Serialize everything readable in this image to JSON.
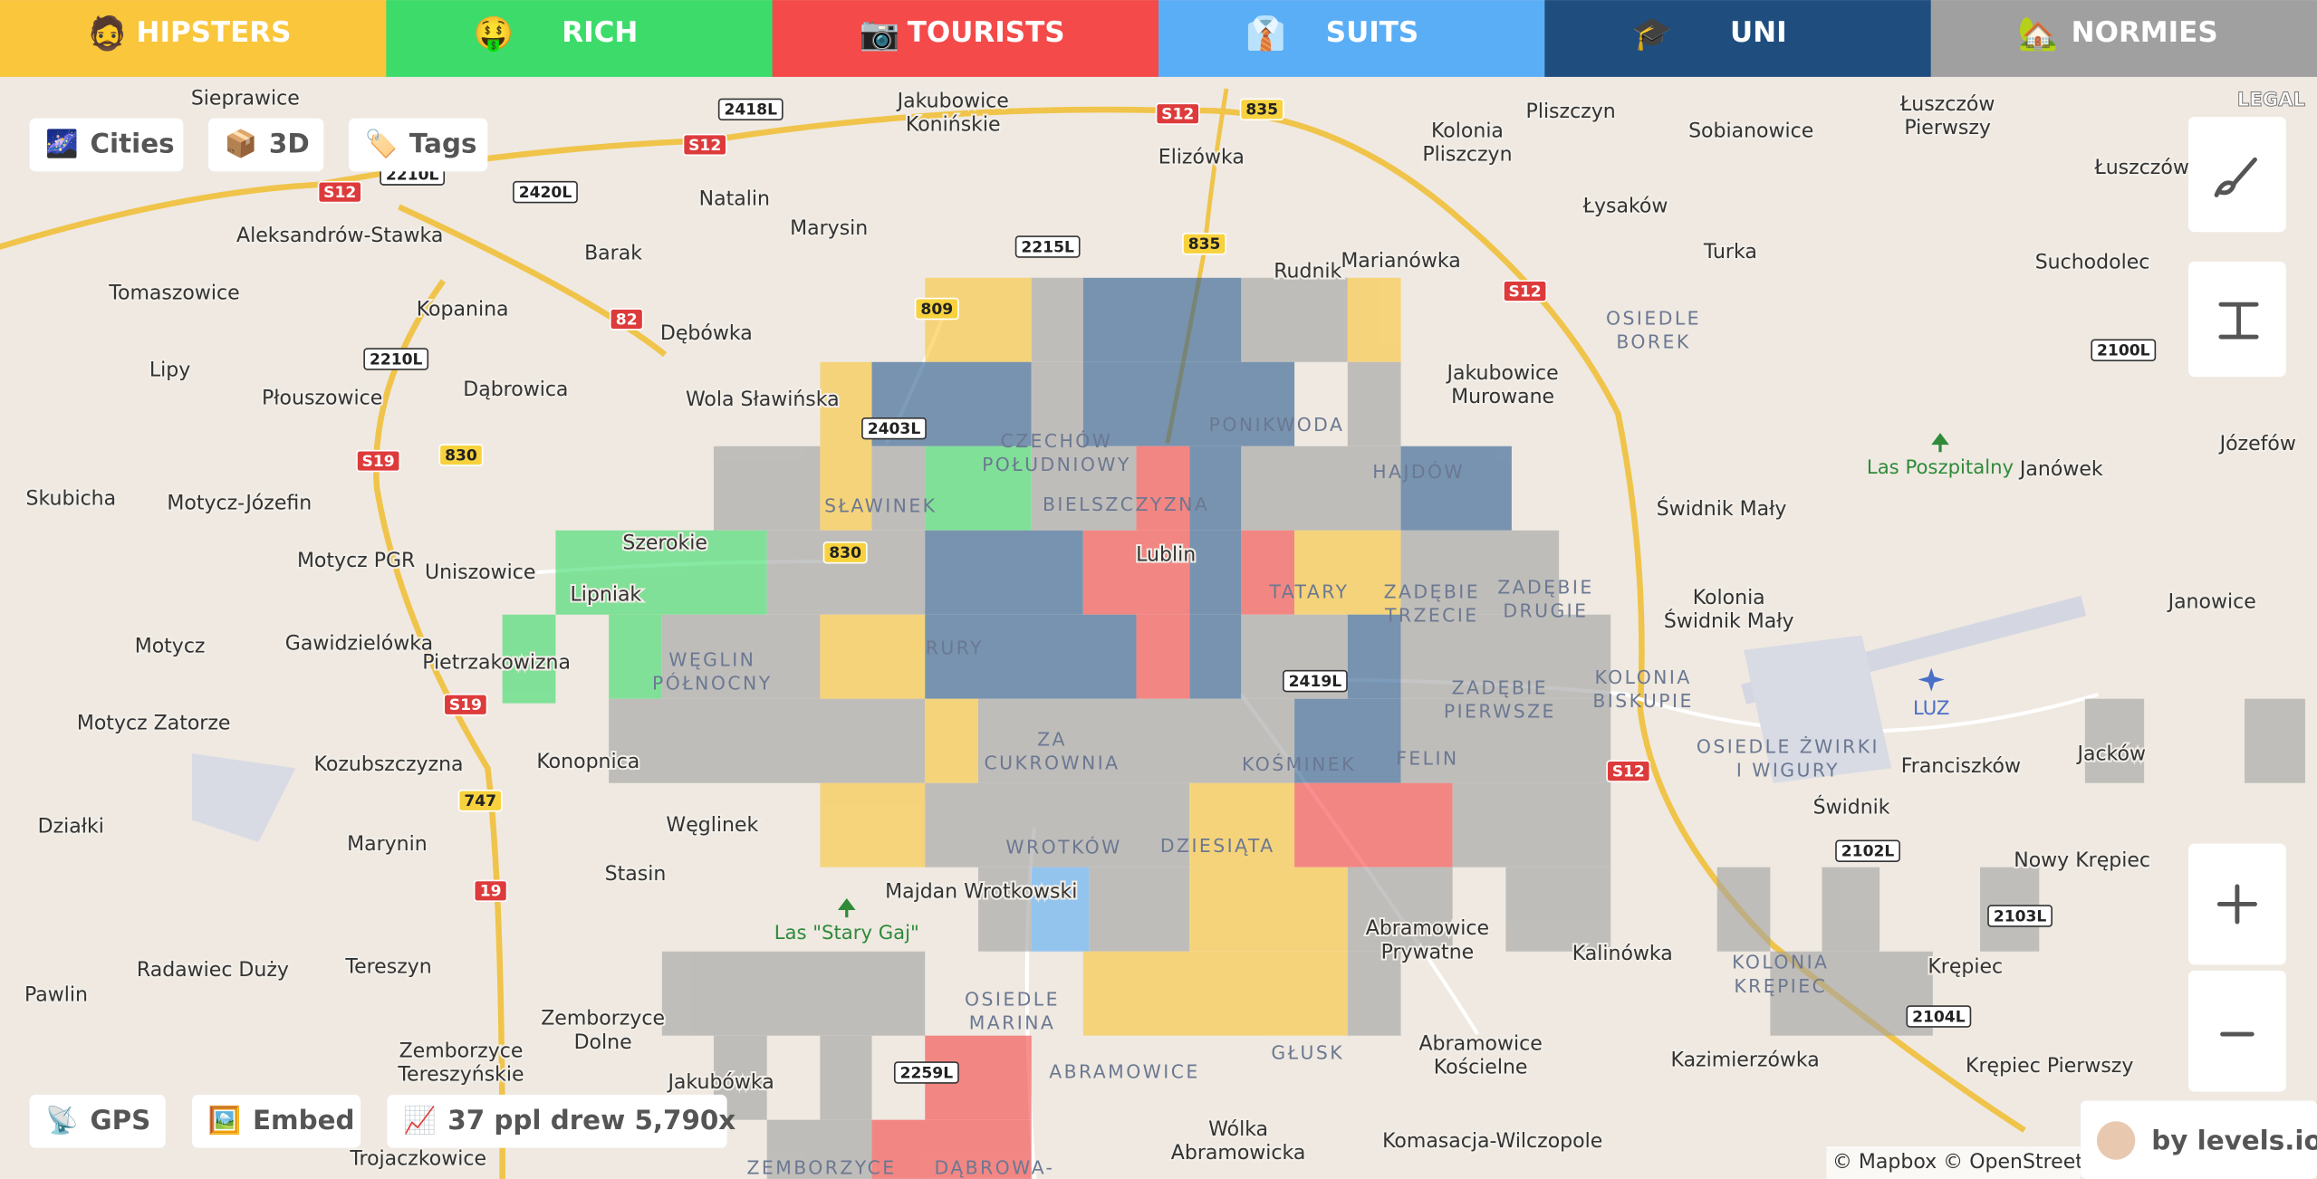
{
  "tabs": [
    {
      "icon": "🧔",
      "label": "HIPSTERS"
    },
    {
      "icon": "🤑",
      "label": "RICH"
    },
    {
      "icon": "📷",
      "label": "TOURISTS"
    },
    {
      "icon": "👔",
      "label": "SUITS"
    },
    {
      "icon": "🎓",
      "label": "UNI"
    },
    {
      "icon": "🏡",
      "label": "NORMIES"
    }
  ],
  "controls": {
    "cities": {
      "icon": "🌌",
      "label": "Cities"
    },
    "three_d": {
      "icon": "📦",
      "label": "3D"
    },
    "tags": {
      "icon": "🏷️",
      "label": "Tags"
    },
    "gps": {
      "icon": "📡",
      "label": "GPS"
    },
    "embed": {
      "icon": "🖼️",
      "label": "Embed"
    },
    "stats": {
      "icon": "📈",
      "label": "37 ppl drew 5,790x"
    }
  },
  "legal": "LEGAL",
  "attribution": "© Mapbox © OpenStreetM",
  "credit": "by levels.io",
  "map": {
    "city": "Lublin",
    "towns": [
      "Sieprawice",
      [
        "Jakubowice",
        "Konińskie"
      ],
      "Elizówka",
      [
        "Kolonia",
        "Pliszczyn"
      ],
      "Pliszczyn",
      "Sobianowice",
      [
        "Łuszczów",
        "Pierwszy"
      ],
      "Łuszczów Drugi",
      "Natalin",
      "Marysin",
      "Aleksandrów-Stawka",
      "Łysaków",
      "Turka",
      "Suchodolec",
      "Barak",
      "Tomaszowice",
      "Kopanina",
      "Dębówka",
      "Rudnik",
      "Marianówka",
      [
        "Jakubowice",
        "Murowane"
      ],
      "Lipy",
      "Płouszowice",
      "Dąbrowica",
      "Wola Sławińska",
      "Józefów",
      "Janówek",
      "Skubicha",
      "Motycz-Józefin",
      "Świdnik Mały",
      "Motycz PGR",
      "Uniszowice",
      [
        "Kolonia",
        "Świdnik Mały"
      ],
      "Janowice",
      "Motycz",
      "Gawidzielówka",
      "Pietrzakowizna",
      "Motycz Zatorze",
      "Kozubszczyzna",
      "Konopnica",
      "Franciszków",
      "Jacków",
      "Świdnik",
      "Działki",
      "Węglinek",
      "Marynin",
      "Stasin",
      "Nowy Krępiec",
      "Majdan Wrotkowski",
      [
        "Abramowice",
        "Prywatne"
      ],
      "Kalinówka",
      "Krępiec",
      "Pawlin",
      "Radawiec Duży",
      "Tereszyn",
      [
        "Zemborzyce",
        "Dolne"
      ],
      [
        "Zemborzyce",
        "Tereszyńskie"
      ],
      "Jakubówka",
      [
        "Abramowice",
        "Kościelne"
      ],
      "Kazimierzówka",
      "Krępiec Pierwszy",
      [
        "Wólka",
        "Abramowicka"
      ],
      "Komasacja-Wilczopole",
      "Trojaczkowice",
      "Szerokie",
      "Lipniak"
    ],
    "districts": [
      [
        "CZECHÓW",
        "POŁUDNIOWY"
      ],
      "PONIKWODA",
      "HAJDÓW",
      "SŁAWINEK",
      "BIELSZCZYZNA",
      "TATARY",
      [
        "ZADĘBIE",
        "TRZECIE"
      ],
      [
        "ZADĘBIE",
        "DRUGIE"
      ],
      [
        "WĘGLIN",
        "PÓŁNOCNY"
      ],
      "RURY",
      [
        "ZADĘBIE",
        "PIERWSZE"
      ],
      [
        "KOLONIA",
        "BISKUPIE"
      ],
      [
        "OSIEDLE",
        "BOREK"
      ],
      [
        "ZA",
        "CUKROWNIA"
      ],
      "KOŚMINEK",
      "FELIN",
      [
        "OSIEDLE ŻWIRKI",
        "I WIGURY"
      ],
      "WROTKÓW",
      "DZIESIĄTA",
      [
        "OSIEDLE",
        "MARINA"
      ],
      "ABRAMOWICE",
      "GŁUSK",
      [
        "KOLONIA",
        "KRĘPIEC"
      ],
      "ZEMBORZYCE",
      "DĄBROWA-"
    ],
    "parks": [
      "Las Poszpitalny",
      "Las \"Stary Gaj\""
    ],
    "airport": "LUZ",
    "roads": [
      {
        "label": "S12",
        "color": "#dd3b3b"
      },
      {
        "label": "S12",
        "color": "#dd3b3b"
      },
      {
        "label": "S12",
        "color": "#dd3b3b"
      },
      {
        "label": "82",
        "color": "#dd3b3b"
      },
      {
        "label": "S19",
        "color": "#dd3b3b"
      },
      {
        "label": "S19",
        "color": "#dd3b3b"
      },
      {
        "label": "19",
        "color": "#dd3b3b"
      },
      {
        "label": "S12",
        "color": "#dd3b3b"
      },
      {
        "label": "S12",
        "color": "#dd3b3b"
      },
      {
        "label": "835",
        "color": "#f7d23e"
      },
      {
        "label": "835",
        "color": "#f7d23e"
      },
      {
        "label": "809",
        "color": "#f7d23e"
      },
      {
        "label": "830",
        "color": "#f7d23e"
      },
      {
        "label": "830",
        "color": "#f7d23e"
      },
      {
        "label": "747",
        "color": "#f7d23e"
      },
      {
        "label": "2418L",
        "color": "#ffffff"
      },
      {
        "label": "2420L",
        "color": "#ffffff"
      },
      {
        "label": "2210L",
        "color": "#ffffff"
      },
      {
        "label": "2215L",
        "color": "#ffffff"
      },
      {
        "label": "2210L",
        "color": "#ffffff"
      },
      {
        "label": "2403L",
        "color": "#ffffff"
      },
      {
        "label": "2419L",
        "color": "#ffffff"
      },
      {
        "label": "2100L",
        "color": "#ffffff"
      },
      {
        "label": "2102L",
        "color": "#ffffff"
      },
      {
        "label": "2103L",
        "color": "#ffffff"
      },
      {
        "label": "2104L",
        "color": "#ffffff"
      },
      {
        "label": "2259L",
        "color": "#ffffff"
      }
    ]
  }
}
